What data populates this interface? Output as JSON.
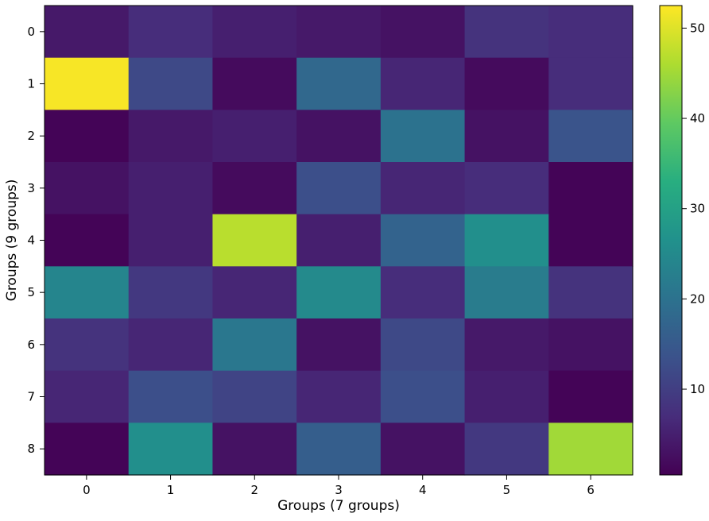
{
  "chart_data": {
    "type": "heatmap",
    "title": "",
    "xlabel": "Groups (7 groups)",
    "ylabel": "Groups (9 groups)",
    "x_categories": [
      "0",
      "1",
      "2",
      "3",
      "4",
      "5",
      "6"
    ],
    "y_categories": [
      "0",
      "1",
      "2",
      "3",
      "4",
      "5",
      "6",
      "7",
      "8"
    ],
    "colormap": "viridis",
    "value_range": [
      0.5,
      52.5
    ],
    "colorbar_ticks": [
      10,
      20,
      30,
      40,
      50
    ],
    "colorbar_tick_labels": [
      "10",
      "20",
      "30",
      "40",
      "50"
    ],
    "values": [
      [
        4,
        7,
        5,
        4,
        3,
        8,
        7
      ],
      [
        52,
        12,
        2,
        18,
        6,
        2,
        7
      ],
      [
        1,
        4,
        5,
        3,
        20,
        3,
        14
      ],
      [
        3,
        5,
        2,
        13,
        6,
        7,
        1
      ],
      [
        1,
        5,
        47,
        5,
        17,
        26,
        1
      ],
      [
        24,
        9,
        6,
        25,
        7,
        22,
        8
      ],
      [
        8,
        6,
        21,
        3,
        12,
        4,
        3
      ],
      [
        6,
        13,
        11,
        6,
        13,
        5,
        1
      ],
      [
        1,
        26,
        3,
        16,
        3,
        9,
        45
      ]
    ]
  }
}
